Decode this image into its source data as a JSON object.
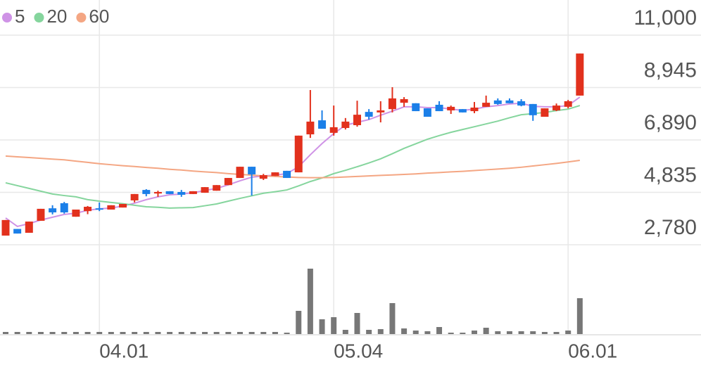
{
  "chart_data": {
    "type": "candlestick",
    "categories": [
      null,
      null,
      null,
      null,
      null,
      null,
      null,
      null,
      "04.01",
      null,
      null,
      null,
      null,
      null,
      null,
      null,
      null,
      null,
      null,
      null,
      null,
      null,
      null,
      null,
      null,
      null,
      null,
      null,
      "05.04",
      null,
      null,
      null,
      null,
      null,
      null,
      null,
      null,
      null,
      null,
      null,
      null,
      null,
      null,
      null,
      null,
      null,
      null,
      null,
      "06.01",
      null
    ],
    "open": [
      3140,
      3400,
      3250,
      3720,
      4210,
      4410,
      3880,
      4100,
      4210,
      4160,
      4240,
      4520,
      4930,
      4790,
      4880,
      4850,
      4770,
      4820,
      4900,
      5120,
      5400,
      5840,
      5370,
      5480,
      5680,
      5620,
      7110,
      7660,
      7170,
      7360,
      7470,
      7990,
      7970,
      8100,
      8350,
      8330,
      8130,
      8270,
      8050,
      8100,
      8020,
      8190,
      8440,
      8440,
      8410,
      8300,
      7800,
      8050,
      8190,
      8630
    ],
    "high": [
      3750,
      3400,
      3690,
      4190,
      4330,
      4460,
      4160,
      4300,
      4440,
      4330,
      4380,
      4770,
      4960,
      4900,
      4880,
      4930,
      4880,
      5040,
      5120,
      5400,
      5840,
      5840,
      5560,
      5620,
      5680,
      7060,
      8850,
      8050,
      8240,
      7750,
      8430,
      8100,
      8410,
      8960,
      8570,
      8330,
      8130,
      8410,
      8240,
      8100,
      8380,
      8630,
      8520,
      8520,
      8490,
      8300,
      8130,
      8320,
      8460,
      10280
    ],
    "low": [
      3140,
      3220,
      3250,
      3720,
      3970,
      4000,
      3880,
      3980,
      4100,
      4160,
      4240,
      4440,
      4680,
      4660,
      4770,
      4660,
      4770,
      4820,
      4900,
      5120,
      5400,
      4710,
      5320,
      5480,
      5400,
      5620,
      6970,
      7330,
      7060,
      7300,
      7410,
      7690,
      7580,
      7970,
      8190,
      8020,
      7800,
      8020,
      7910,
      7970,
      7940,
      8190,
      8270,
      8330,
      8210,
      7640,
      7800,
      8020,
      8130,
      8630
    ],
    "close": [
      3750,
      3220,
      3690,
      4190,
      4050,
      4050,
      4160,
      4270,
      4160,
      4330,
      4380,
      4770,
      4770,
      4850,
      4770,
      4740,
      4880,
      5040,
      5120,
      5400,
      5840,
      5540,
      5510,
      5620,
      5400,
      7060,
      7610,
      7330,
      7390,
      7610,
      7880,
      7800,
      8050,
      8520,
      8490,
      8020,
      7800,
      8020,
      8190,
      7970,
      8160,
      8350,
      8300,
      8330,
      8240,
      7860,
      8130,
      8240,
      8410,
      10280
    ],
    "up_color": "#e2311d",
    "down_color": "#1b7fe8",
    "moving_averages": [
      {
        "name": "5",
        "color": "#cf93e6",
        "values": [
          3830,
          3500,
          3610,
          3750,
          3860,
          3970,
          4020,
          4130,
          4190,
          4220,
          4300,
          4410,
          4550,
          4660,
          4740,
          4770,
          4820,
          4910,
          4990,
          5130,
          5290,
          5430,
          5480,
          5510,
          5570,
          5840,
          6310,
          6750,
          7140,
          7470,
          7580,
          7690,
          7860,
          8020,
          8190,
          8190,
          8160,
          8160,
          8100,
          8050,
          8100,
          8190,
          8240,
          8300,
          8330,
          8210,
          8190,
          8190,
          8240,
          8570
        ]
      },
      {
        "name": "20",
        "color": "#85d59d",
        "values": [
          5210,
          5100,
          4990,
          4880,
          4770,
          4710,
          4660,
          4550,
          4490,
          4440,
          4390,
          4330,
          4270,
          4250,
          4220,
          4230,
          4240,
          4310,
          4380,
          4490,
          4600,
          4700,
          4800,
          4860,
          4930,
          5090,
          5260,
          5400,
          5570,
          5700,
          5840,
          5990,
          6150,
          6350,
          6560,
          6740,
          6920,
          7060,
          7190,
          7300,
          7410,
          7520,
          7630,
          7760,
          7880,
          7920,
          7970,
          8040,
          8100,
          8240
        ]
      },
      {
        "name": "60",
        "color": "#f4a683",
        "values": [
          6260,
          6230,
          6200,
          6170,
          6140,
          6110,
          6060,
          6010,
          5960,
          5920,
          5880,
          5850,
          5810,
          5780,
          5740,
          5710,
          5670,
          5640,
          5610,
          5570,
          5540,
          5510,
          5480,
          5460,
          5440,
          5420,
          5410,
          5410,
          5420,
          5440,
          5460,
          5480,
          5500,
          5520,
          5540,
          5560,
          5590,
          5610,
          5640,
          5660,
          5690,
          5720,
          5750,
          5780,
          5820,
          5870,
          5920,
          5970,
          6030,
          6090
        ]
      }
    ],
    "ylim": [
      2450,
      12000
    ],
    "yticks": [
      {
        "value": 11000,
        "label": "11,000"
      },
      {
        "value": 8945,
        "label": "8,945"
      },
      {
        "value": 6890,
        "label": "6,890"
      },
      {
        "value": 4835,
        "label": "4,835"
      },
      {
        "value": 2780,
        "label": "2,780"
      }
    ],
    "grid": true,
    "volume": {
      "color": "#777777",
      "ylim": [
        0,
        100
      ],
      "values": [
        3,
        3,
        3,
        3,
        3,
        3,
        3,
        3,
        3,
        3,
        3,
        3,
        3,
        3,
        3,
        3,
        3,
        3,
        3,
        3,
        3,
        3,
        3,
        3,
        2,
        33,
        93,
        21,
        24,
        6,
        30,
        6,
        7,
        44,
        8,
        5,
        4,
        10,
        2,
        2,
        5,
        9,
        4,
        4,
        4,
        4,
        3,
        3,
        5,
        51
      ]
    }
  }
}
